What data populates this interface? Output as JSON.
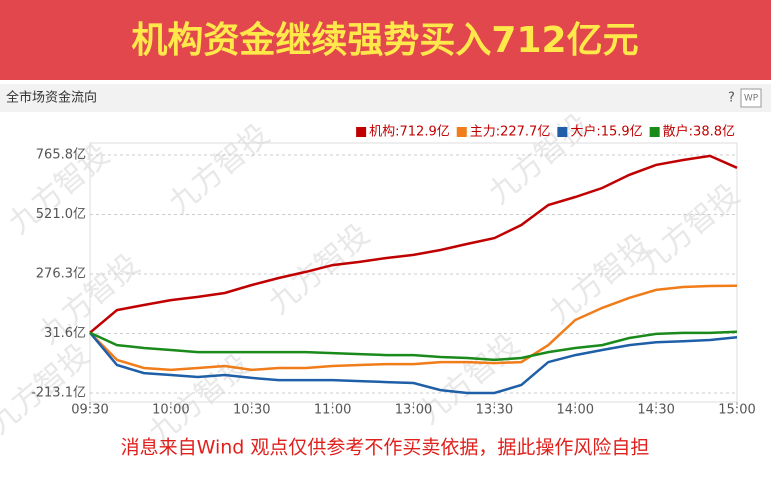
{
  "banner": "机构资金继续强势买入712亿元",
  "panel_title": "全市场资金流向",
  "help": "?",
  "icon": "WP",
  "watermark": "九方智投",
  "footer": "消息来自Wind  观点仅供参考不作买卖依据，据此操作风险自担",
  "chart_data": {
    "type": "line",
    "x": [
      0,
      10,
      20,
      30,
      40,
      50,
      60,
      70,
      80,
      90,
      100,
      110,
      120,
      130,
      140,
      150,
      160,
      170,
      180,
      190,
      200,
      210,
      220,
      230,
      240
    ],
    "xlim": [
      0,
      240
    ],
    "xticks": [
      {
        "value": 0,
        "label": "09:30"
      },
      {
        "value": 30,
        "label": "10:00"
      },
      {
        "value": 60,
        "label": "10:30"
      },
      {
        "value": 90,
        "label": "11:00"
      },
      {
        "value": 120,
        "label": "13:00"
      },
      {
        "value": 150,
        "label": "13:30"
      },
      {
        "value": 180,
        "label": "14:00"
      },
      {
        "value": 210,
        "label": "14:30"
      },
      {
        "value": 240,
        "label": "15:00"
      }
    ],
    "ylim": [
      -250,
      815
    ],
    "yticks": [
      {
        "value": 765.8,
        "label": "765.8亿"
      },
      {
        "value": 521.0,
        "label": "521.0亿"
      },
      {
        "value": 276.3,
        "label": "276.3亿"
      },
      {
        "value": 31.6,
        "label": "31.6亿"
      },
      {
        "value": -213.1,
        "label": "-213.1亿"
      }
    ],
    "grid": true,
    "legend": "top-right",
    "series": [
      {
        "name": "机构:712.9亿",
        "color": "#c00000",
        "values": [
          35,
          128,
          149,
          169,
          182,
          198,
          231,
          260,
          285,
          313,
          326,
          342,
          355,
          375,
          400,
          424,
          478,
          560,
          593,
          630,
          684,
          725,
          745,
          762,
          712.9
        ]
      },
      {
        "name": "主力:227.7亿",
        "color": "#f07c1a",
        "values": [
          35,
          -77,
          -110,
          -118,
          -110,
          -102,
          -118,
          -110,
          -110,
          -102,
          -98,
          -94,
          -94,
          -86,
          -86,
          -90,
          -86,
          -16,
          87,
          137,
          178,
          211,
          223,
          227,
          227.7
        ]
      },
      {
        "name": "大户:15.9亿",
        "color": "#1f5fa8",
        "values": [
          35,
          -98,
          -131,
          -139,
          -147,
          -139,
          -151,
          -160,
          -160,
          -160,
          -164,
          -168,
          -172,
          -201,
          -213,
          -213,
          -180,
          -86,
          -57,
          -36,
          -16,
          -4,
          0,
          5,
          15.9
        ]
      },
      {
        "name": "散户:38.8亿",
        "color": "#1a8a1a",
        "values": [
          35,
          -16,
          -28,
          -36,
          -45,
          -45,
          -45,
          -45,
          -45,
          -49,
          -53,
          -57,
          -57,
          -65,
          -69,
          -77,
          -69,
          -45,
          -28,
          -16,
          13,
          30,
          34,
          34,
          38.8
        ]
      }
    ]
  }
}
